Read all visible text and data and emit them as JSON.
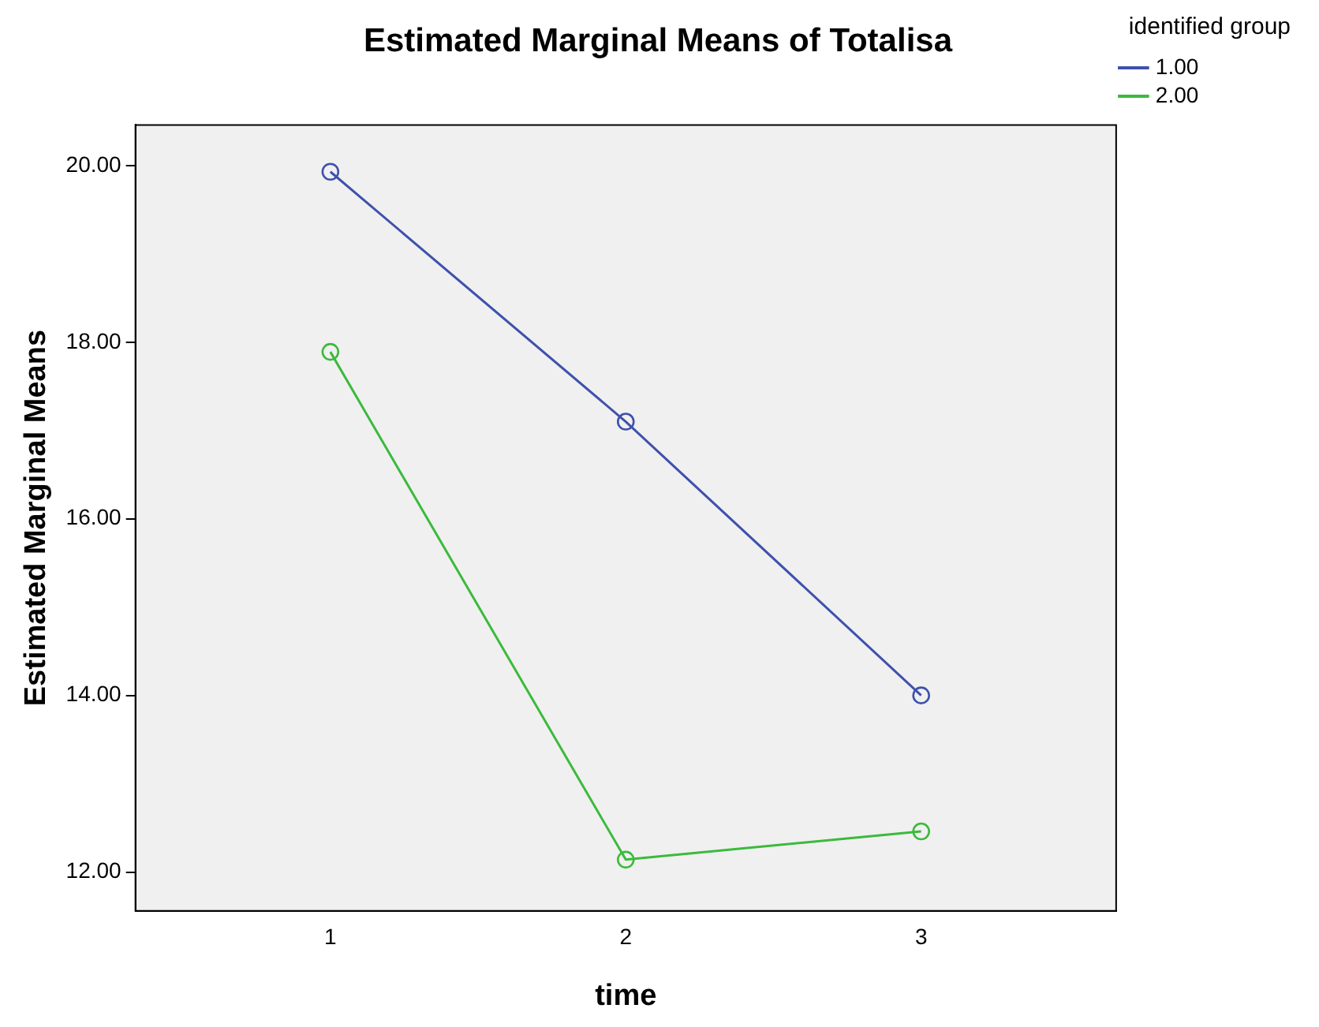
{
  "chart_data": {
    "type": "line",
    "title": "Estimated Marginal Means of Totalisa",
    "xlabel": "time",
    "ylabel": "Estimated Marginal Means",
    "legend_title": "identified group",
    "legend": "right",
    "grid": false,
    "marker": "circle",
    "line_style": "solid",
    "x": [
      1,
      2,
      3
    ],
    "xlim": [
      0.34,
      3.66
    ],
    "xticks": [
      1,
      2,
      3
    ],
    "ylim": [
      11.56,
      20.46
    ],
    "yticks": [
      {
        "value": 12,
        "label": "12.00"
      },
      {
        "value": 14,
        "label": "14.00"
      },
      {
        "value": 16,
        "label": "16.00"
      },
      {
        "value": 18,
        "label": "18.00"
      },
      {
        "value": 20,
        "label": "20.00"
      }
    ],
    "series": [
      {
        "name": "1.00",
        "color": "#3f51ad",
        "values": [
          19.93,
          17.1,
          14.0
        ]
      },
      {
        "name": "2.00",
        "color": "#3cba3c",
        "values": [
          17.89,
          12.14,
          12.46
        ]
      }
    ]
  }
}
